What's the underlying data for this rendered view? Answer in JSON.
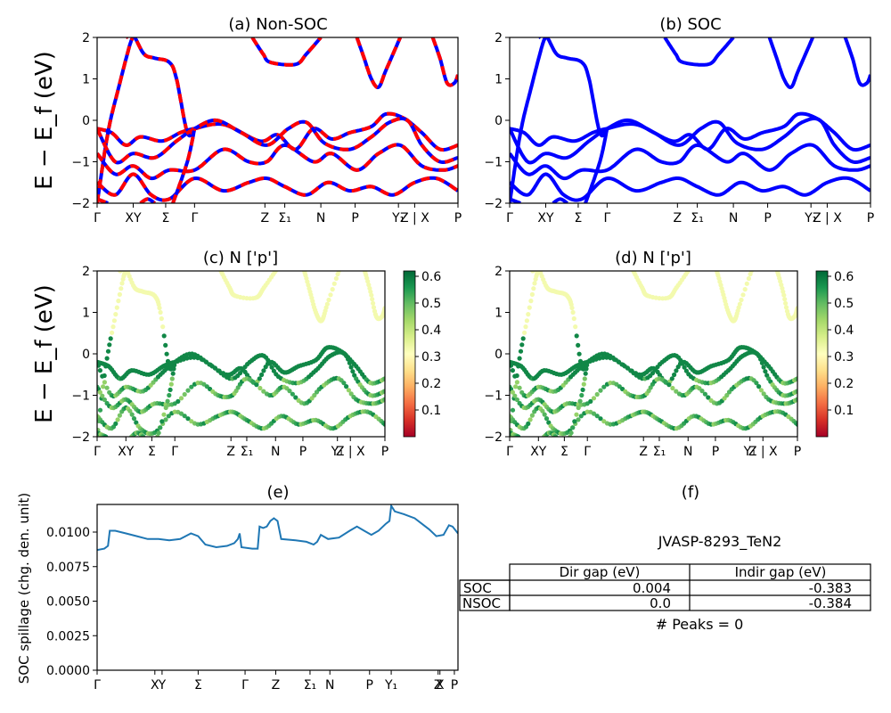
{
  "figure": {
    "ylabel_band": "E − E_f (eV)",
    "ylabel_spill": "SOC spillage (chg. den. unit)"
  },
  "panels": {
    "a": {
      "title": "(a) Non-SOC"
    },
    "b": {
      "title": "(b) SOC"
    },
    "c": {
      "title": "(c)  N ['p']"
    },
    "d": {
      "title": "(d) N ['p']"
    },
    "e": {
      "title": "(e)"
    },
    "f": {
      "title": "(f)"
    }
  },
  "colorbar": {
    "cmap": "RdYlGn",
    "ticks": [
      "0.1",
      "0.2",
      "0.3",
      "0.4",
      "0.5",
      "0.6"
    ],
    "range": [
      0.0,
      0.62
    ]
  },
  "colors": {
    "nonsoc": "#ff0000",
    "soc": "#0000ff",
    "spillage": "#1f77b4"
  },
  "gap_table": {
    "material": "JVASP-8293_TeN2",
    "columns": [
      "Dir gap (eV)",
      "Indir gap (eV)"
    ],
    "rows": [
      {
        "label": "SOC",
        "dir": "0.004",
        "indir": "-0.383"
      },
      {
        "label": "NSOC",
        "dir": "0.0",
        "indir": "-0.384"
      }
    ],
    "peaks": "# Peaks = 0"
  },
  "chart_data": [
    {
      "type": "line",
      "panel": "a",
      "title": "(a) Non-SOC",
      "ylabel": "E − E_f (eV)",
      "ylim": [
        -2,
        2
      ],
      "yticks": [
        "2",
        "1",
        "0",
        "−1",
        "−2"
      ],
      "xticks": [
        {
          "pos": 0.0,
          "label": "Γ"
        },
        {
          "pos": 0.1,
          "label": "XY"
        },
        {
          "pos": 0.19,
          "label": "Σ"
        },
        {
          "pos": 0.27,
          "label": "Γ"
        },
        {
          "pos": 0.465,
          "label": "Z"
        },
        {
          "pos": 0.52,
          "label": "Σ₁"
        },
        {
          "pos": 0.62,
          "label": "N"
        },
        {
          "pos": 0.715,
          "label": "P"
        },
        {
          "pos": 0.835,
          "label": "Y₁"
        },
        {
          "pos": 0.88,
          "label": "Z | X"
        },
        {
          "pos": 1.0,
          "label": "P"
        }
      ],
      "series": [
        {
          "values": [
            [
              0,
              -2
            ],
            [
              0.03,
              -0.3
            ],
            [
              0.06,
              0.8
            ],
            [
              0.09,
              1.8
            ],
            [
              0.1,
              2.0
            ]
          ]
        },
        {
          "values": [
            [
              0.08,
              2.0
            ],
            [
              0.1,
              2.05
            ],
            [
              0.13,
              1.6
            ],
            [
              0.16,
              1.5
            ],
            [
              0.2,
              1.4
            ],
            [
              0.22,
              1.0
            ],
            [
              0.25,
              -0.3
            ],
            [
              0.27,
              -0.2
            ]
          ]
        },
        {
          "values": [
            [
              0.0,
              -0.2
            ],
            [
              0.04,
              -0.3
            ],
            [
              0.08,
              -0.6
            ],
            [
              0.12,
              -0.4
            ],
            [
              0.18,
              -0.5
            ],
            [
              0.23,
              -0.3
            ],
            [
              0.27,
              -0.2
            ],
            [
              0.35,
              -0.1
            ],
            [
              0.45,
              -0.5
            ],
            [
              0.5,
              -0.35
            ],
            [
              0.55,
              -0.7
            ],
            [
              0.6,
              -0.2
            ],
            [
              0.65,
              -0.45
            ],
            [
              0.7,
              -0.3
            ],
            [
              0.76,
              -0.15
            ],
            [
              0.8,
              0.15
            ],
            [
              0.85,
              0.05
            ],
            [
              0.9,
              -0.3
            ],
            [
              0.95,
              -0.7
            ],
            [
              1.0,
              -0.6
            ]
          ]
        },
        {
          "values": [
            [
              0.0,
              -0.2
            ],
            [
              0.05,
              -1.0
            ],
            [
              0.1,
              -0.8
            ],
            [
              0.16,
              -0.9
            ],
            [
              0.22,
              -0.5
            ],
            [
              0.27,
              -0.2
            ],
            [
              0.33,
              0.0
            ],
            [
              0.4,
              -0.3
            ],
            [
              0.47,
              -0.6
            ],
            [
              0.53,
              -0.2
            ],
            [
              0.58,
              -0.05
            ],
            [
              0.63,
              -0.55
            ],
            [
              0.7,
              -0.7
            ],
            [
              0.76,
              -0.4
            ],
            [
              0.81,
              -0.05
            ],
            [
              0.86,
              0.0
            ],
            [
              0.9,
              -0.6
            ],
            [
              0.95,
              -1.0
            ],
            [
              1.0,
              -0.9
            ]
          ]
        },
        {
          "values": [
            [
              0.0,
              -0.8
            ],
            [
              0.05,
              -1.3
            ],
            [
              0.1,
              -1.1
            ],
            [
              0.15,
              -1.4
            ],
            [
              0.2,
              -1.2
            ],
            [
              0.27,
              -1.2
            ],
            [
              0.35,
              -0.7
            ],
            [
              0.42,
              -1.0
            ],
            [
              0.47,
              -1.0
            ],
            [
              0.52,
              -0.6
            ],
            [
              0.6,
              -1.0
            ],
            [
              0.65,
              -0.8
            ],
            [
              0.72,
              -1.2
            ],
            [
              0.78,
              -0.8
            ],
            [
              0.84,
              -0.6
            ],
            [
              0.9,
              -1.1
            ],
            [
              0.96,
              -1.2
            ],
            [
              1.0,
              -1.1
            ]
          ]
        },
        {
          "values": [
            [
              0.0,
              -1.5
            ],
            [
              0.05,
              -1.8
            ],
            [
              0.1,
              -1.3
            ],
            [
              0.15,
              -1.8
            ],
            [
              0.2,
              -1.9
            ],
            [
              0.27,
              -1.4
            ],
            [
              0.35,
              -1.7
            ],
            [
              0.42,
              -1.5
            ],
            [
              0.47,
              -1.4
            ],
            [
              0.52,
              -1.6
            ],
            [
              0.58,
              -1.8
            ],
            [
              0.64,
              -1.5
            ],
            [
              0.7,
              -1.7
            ],
            [
              0.76,
              -1.6
            ],
            [
              0.82,
              -1.8
            ],
            [
              0.88,
              -1.5
            ],
            [
              0.94,
              -1.4
            ],
            [
              1.0,
              -1.7
            ]
          ]
        },
        {
          "values": [
            [
              0.0,
              -1.9
            ],
            [
              0.03,
              -2.0
            ]
          ]
        },
        {
          "values": [
            [
              0.12,
              -2.0
            ],
            [
              0.14,
              -1.9
            ],
            [
              0.16,
              -2.0
            ]
          ]
        },
        {
          "values": [
            [
              0.21,
              -2.0
            ],
            [
              0.25,
              -1.0
            ],
            [
              0.27,
              -0.2
            ]
          ]
        },
        {
          "values": [
            [
              0.43,
              2.0
            ],
            [
              0.46,
              1.6
            ],
            [
              0.48,
              1.4
            ],
            [
              0.55,
              1.35
            ],
            [
              0.58,
              1.6
            ],
            [
              0.62,
              2.0
            ]
          ]
        },
        {
          "values": [
            [
              0.72,
              2.0
            ],
            [
              0.74,
              1.5
            ],
            [
              0.76,
              1.0
            ],
            [
              0.78,
              0.8
            ],
            [
              0.8,
              1.2
            ],
            [
              0.84,
              2.0
            ]
          ]
        },
        {
          "values": [
            [
              0.93,
              2.0
            ],
            [
              0.95,
              1.5
            ],
            [
              0.97,
              0.9
            ],
            [
              0.99,
              0.9
            ],
            [
              1.0,
              1.1
            ]
          ]
        }
      ]
    },
    {
      "type": "line",
      "panel": "b",
      "title": "(b) SOC",
      "ylim": [
        -2,
        2
      ],
      "yticks": [
        "2",
        "1",
        "0",
        "−1",
        "−2"
      ],
      "note": "same bands as (a), SOC in blue"
    },
    {
      "type": "scatter",
      "panel": "c",
      "title": "(c)  N ['p']",
      "ylabel": "E − E_f (eV)",
      "ylim": [
        -2,
        2
      ],
      "colorbar_range": [
        0.0,
        0.62
      ],
      "note": "bands of (a) colored by N p-orbital weight"
    },
    {
      "type": "scatter",
      "panel": "d",
      "title": "(d) N ['p']",
      "ylim": [
        -2,
        2
      ],
      "colorbar_range": [
        0.0,
        0.62
      ],
      "note": "bands of (b) colored by N p-orbital weight"
    },
    {
      "type": "line",
      "panel": "e",
      "title": "(e)",
      "ylabel": "SOC spillage (chg. den. unit)",
      "ylim": [
        0,
        0.012
      ],
      "yticks": [
        "0.0000",
        "0.0025",
        "0.0050",
        "0.0075",
        "0.0100"
      ],
      "ytick_values": [
        0,
        0.0025,
        0.005,
        0.0075,
        0.01
      ],
      "xticks": [
        {
          "pos": 0.0,
          "label": "Γ"
        },
        {
          "pos": 0.16,
          "label": "X"
        },
        {
          "pos": 0.18,
          "label": "Y"
        },
        {
          "pos": 0.28,
          "label": "Σ"
        },
        {
          "pos": 0.41,
          "label": "Γ"
        },
        {
          "pos": 0.495,
          "label": "Z"
        },
        {
          "pos": 0.59,
          "label": "Σ₁"
        },
        {
          "pos": 0.645,
          "label": "N"
        },
        {
          "pos": 0.755,
          "label": "P"
        },
        {
          "pos": 0.815,
          "label": "Y₁"
        },
        {
          "pos": 0.945,
          "label": "Z"
        },
        {
          "pos": 0.95,
          "label": "X"
        },
        {
          "pos": 0.99,
          "label": "P"
        }
      ],
      "series": [
        {
          "values": [
            [
              0,
              0.0087
            ],
            [
              0.02,
              0.0088
            ],
            [
              0.03,
              0.009
            ],
            [
              0.035,
              0.0101
            ],
            [
              0.05,
              0.0101
            ],
            [
              0.08,
              0.0099
            ],
            [
              0.11,
              0.0097
            ],
            [
              0.14,
              0.0095
            ],
            [
              0.17,
              0.0095
            ],
            [
              0.2,
              0.0094
            ],
            [
              0.23,
              0.0095
            ],
            [
              0.26,
              0.0099
            ],
            [
              0.28,
              0.0097
            ],
            [
              0.3,
              0.0091
            ],
            [
              0.33,
              0.0089
            ],
            [
              0.36,
              0.009
            ],
            [
              0.38,
              0.0092
            ],
            [
              0.39,
              0.0095
            ],
            [
              0.395,
              0.0099
            ],
            [
              0.4,
              0.0089
            ],
            [
              0.43,
              0.0088
            ],
            [
              0.445,
              0.0088
            ],
            [
              0.45,
              0.0104
            ],
            [
              0.46,
              0.0103
            ],
            [
              0.47,
              0.0104
            ],
            [
              0.48,
              0.0108
            ],
            [
              0.49,
              0.011
            ],
            [
              0.5,
              0.0108
            ],
            [
              0.51,
              0.0095
            ],
            [
              0.55,
              0.0094
            ],
            [
              0.58,
              0.0093
            ],
            [
              0.6,
              0.0091
            ],
            [
              0.61,
              0.0093
            ],
            [
              0.62,
              0.0098
            ],
            [
              0.64,
              0.0095
            ],
            [
              0.67,
              0.0096
            ],
            [
              0.7,
              0.0101
            ],
            [
              0.72,
              0.0104
            ],
            [
              0.74,
              0.0101
            ],
            [
              0.76,
              0.0098
            ],
            [
              0.78,
              0.0101
            ],
            [
              0.8,
              0.0106
            ],
            [
              0.81,
              0.0108
            ],
            [
              0.815,
              0.0119
            ],
            [
              0.825,
              0.0115
            ],
            [
              0.85,
              0.0113
            ],
            [
              0.88,
              0.011
            ],
            [
              0.9,
              0.0106
            ],
            [
              0.92,
              0.0102
            ],
            [
              0.94,
              0.0097
            ],
            [
              0.96,
              0.0098
            ],
            [
              0.975,
              0.0105
            ],
            [
              0.985,
              0.0104
            ],
            [
              1.0,
              0.0099
            ]
          ]
        }
      ]
    }
  ]
}
